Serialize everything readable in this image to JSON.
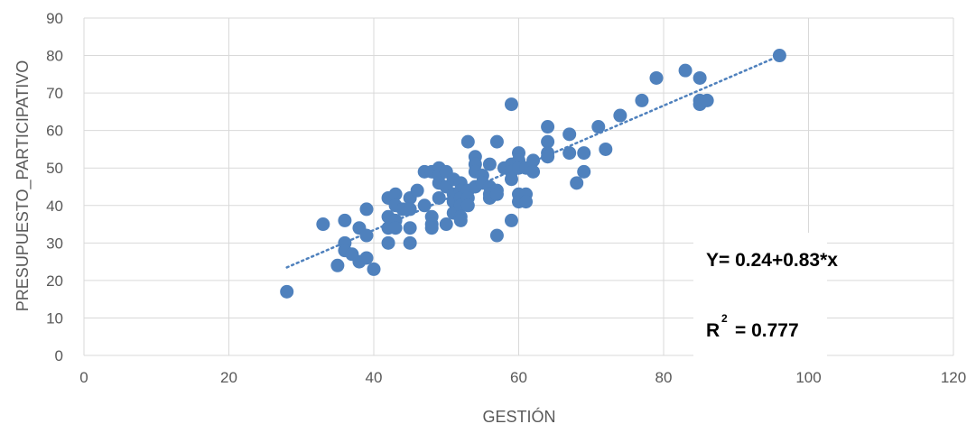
{
  "chart_data": {
    "type": "scatter",
    "xlabel": "GESTIÓN",
    "ylabel": "PRESUPUESTO_PARTICIPATIVO",
    "xlim": [
      0,
      120
    ],
    "ylim": [
      0,
      90
    ],
    "xticks": [
      "0",
      "20",
      "40",
      "60",
      "80",
      "100",
      "120"
    ],
    "yticks": [
      "0",
      "10",
      "20",
      "30",
      "40",
      "50",
      "60",
      "70",
      "80",
      "90"
    ],
    "grid": true,
    "marker_color": "#4F81BD",
    "trendline": {
      "type": "linear",
      "style": "dotted",
      "color": "#4F81BD",
      "intercept": 0.24,
      "slope": 0.83,
      "x_range": [
        28,
        96
      ]
    },
    "annotations": {
      "equation": "Y= 0.24+0.83*x",
      "r2_label": "R",
      "r2_superscript": "2",
      "r2_value": "= 0.777"
    },
    "points": [
      [
        28,
        17
      ],
      [
        33,
        35
      ],
      [
        35,
        24
      ],
      [
        36,
        36
      ],
      [
        36,
        30
      ],
      [
        36,
        28
      ],
      [
        37,
        27
      ],
      [
        38,
        34
      ],
      [
        38,
        25
      ],
      [
        39,
        39
      ],
      [
        39,
        32
      ],
      [
        39,
        26
      ],
      [
        40,
        23
      ],
      [
        42,
        42
      ],
      [
        42,
        37
      ],
      [
        42,
        34
      ],
      [
        42,
        30
      ],
      [
        43,
        43
      ],
      [
        43,
        40
      ],
      [
        43,
        36
      ],
      [
        43,
        34
      ],
      [
        44,
        39
      ],
      [
        45,
        42
      ],
      [
        45,
        39
      ],
      [
        45,
        34
      ],
      [
        45,
        30
      ],
      [
        46,
        44
      ],
      [
        47,
        49
      ],
      [
        47,
        40
      ],
      [
        48,
        49
      ],
      [
        48,
        37
      ],
      [
        48,
        35
      ],
      [
        48,
        34
      ],
      [
        49,
        50
      ],
      [
        49,
        48
      ],
      [
        49,
        46
      ],
      [
        49,
        42
      ],
      [
        50,
        49
      ],
      [
        50,
        45
      ],
      [
        50,
        35
      ],
      [
        51,
        47
      ],
      [
        51,
        43
      ],
      [
        51,
        41
      ],
      [
        51,
        38
      ],
      [
        52,
        46
      ],
      [
        52,
        44
      ],
      [
        52,
        42
      ],
      [
        52,
        40
      ],
      [
        52,
        37
      ],
      [
        52,
        36
      ],
      [
        53,
        57
      ],
      [
        53,
        44
      ],
      [
        53,
        42
      ],
      [
        53,
        40
      ],
      [
        54,
        53
      ],
      [
        54,
        51
      ],
      [
        54,
        49
      ],
      [
        54,
        45
      ],
      [
        55,
        48
      ],
      [
        55,
        46
      ],
      [
        56,
        51
      ],
      [
        56,
        45
      ],
      [
        56,
        43
      ],
      [
        56,
        42
      ],
      [
        57,
        57
      ],
      [
        57,
        44
      ],
      [
        57,
        43
      ],
      [
        57,
        32
      ],
      [
        58,
        50
      ],
      [
        59,
        67
      ],
      [
        59,
        51
      ],
      [
        59,
        49
      ],
      [
        59,
        47
      ],
      [
        59,
        36
      ],
      [
        60,
        54
      ],
      [
        60,
        52
      ],
      [
        60,
        50
      ],
      [
        60,
        43
      ],
      [
        60,
        41
      ],
      [
        61,
        50
      ],
      [
        61,
        43
      ],
      [
        61,
        41
      ],
      [
        62,
        52
      ],
      [
        62,
        49
      ],
      [
        64,
        61
      ],
      [
        64,
        57
      ],
      [
        64,
        54
      ],
      [
        64,
        53
      ],
      [
        67,
        59
      ],
      [
        67,
        54
      ],
      [
        68,
        46
      ],
      [
        69,
        54
      ],
      [
        69,
        49
      ],
      [
        71,
        61
      ],
      [
        72,
        55
      ],
      [
        74,
        64
      ],
      [
        77,
        68
      ],
      [
        79,
        74
      ],
      [
        83,
        76
      ],
      [
        85,
        74
      ],
      [
        85,
        68
      ],
      [
        85,
        67
      ],
      [
        86,
        68
      ],
      [
        96,
        80
      ]
    ]
  }
}
